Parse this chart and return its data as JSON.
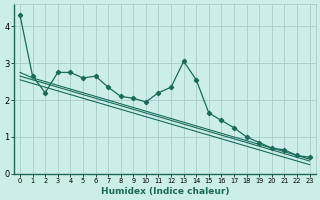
{
  "xlabel": "Humidex (Indice chaleur)",
  "background_color": "#cceee8",
  "grid_color": "#aacccc",
  "line_color": "#1a6b5a",
  "xlim": [
    -0.5,
    23.5
  ],
  "ylim": [
    0,
    4.6
  ],
  "xticks": [
    0,
    1,
    2,
    3,
    4,
    5,
    6,
    7,
    8,
    9,
    10,
    11,
    12,
    13,
    14,
    15,
    16,
    17,
    18,
    19,
    20,
    21,
    22,
    23
  ],
  "yticks": [
    0,
    1,
    2,
    3,
    4
  ],
  "jagged_series": [
    4.3,
    2.65,
    2.2,
    2.75,
    2.75,
    2.6,
    2.65,
    2.35,
    2.1,
    2.05,
    1.95,
    2.2,
    2.35,
    3.05,
    2.55,
    1.65,
    1.45,
    1.25,
    1.0,
    0.85,
    0.7,
    0.65,
    0.5,
    0.45
  ],
  "linear_series": [
    [
      2.75,
      2.6,
      2.5,
      2.4,
      2.3,
      2.2,
      2.1,
      2.0,
      1.9,
      1.8,
      1.7,
      1.6,
      1.5,
      1.4,
      1.3,
      1.2,
      1.1,
      1.0,
      0.9,
      0.8,
      0.7,
      0.6,
      0.5,
      0.4
    ],
    [
      2.65,
      2.55,
      2.45,
      2.35,
      2.25,
      2.15,
      2.05,
      1.95,
      1.85,
      1.75,
      1.65,
      1.55,
      1.45,
      1.35,
      1.25,
      1.15,
      1.05,
      0.95,
      0.85,
      0.75,
      0.65,
      0.55,
      0.45,
      0.35
    ],
    [
      2.55,
      2.45,
      2.35,
      2.25,
      2.15,
      2.05,
      1.95,
      1.85,
      1.75,
      1.65,
      1.55,
      1.45,
      1.35,
      1.25,
      1.15,
      1.05,
      0.95,
      0.85,
      0.75,
      0.65,
      0.55,
      0.45,
      0.35,
      0.25
    ]
  ]
}
